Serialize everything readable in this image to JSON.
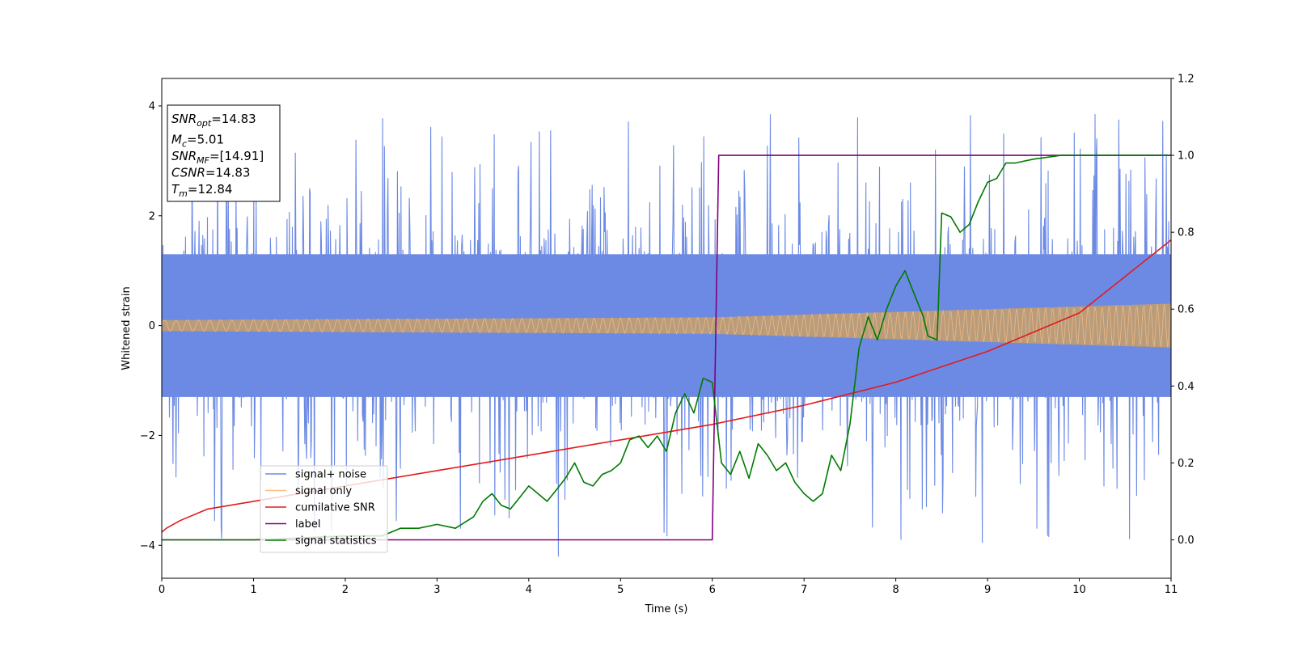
{
  "chart_data": {
    "type": "line",
    "xlabel": "Time (s)",
    "ylabel": "Whitened strain",
    "xlim": [
      0,
      11
    ],
    "ylim": [
      -4.6,
      4.5
    ],
    "y2lim": [
      -0.1,
      1.2
    ],
    "x_ticks": [
      "0",
      "1",
      "2",
      "3",
      "4",
      "5",
      "6",
      "7",
      "8",
      "9",
      "10",
      "11"
    ],
    "y_ticks": [
      "−4",
      "−2",
      "0",
      "2",
      "4"
    ],
    "y2_ticks": [
      "0.0",
      "0.2",
      "0.4",
      "0.6",
      "0.8",
      "1.0",
      "1.2"
    ],
    "legend_position": "lower-left",
    "series": [
      {
        "name": "signal+ noise",
        "axis": "left",
        "color": "#6c8ae4",
        "description": "dense oscillating noisy strain, amplitude ~1.2, spikes to about ±4",
        "envelope": [
          [
            0,
            -1.3,
            1.3
          ],
          [
            11,
            -1.3,
            1.3
          ]
        ]
      },
      {
        "name": "signal only",
        "axis": "left",
        "color": "#ffbf7f",
        "description": "chirp with slowly growing amplitude",
        "envelope": [
          [
            0,
            -0.1,
            0.1
          ],
          [
            6,
            -0.15,
            0.15
          ],
          [
            11,
            -0.4,
            0.4
          ]
        ]
      },
      {
        "name": "cumilative SNR",
        "axis": "right",
        "color": "#e41a1c",
        "x": [
          0,
          0.05,
          0.2,
          0.5,
          1,
          2,
          3,
          4,
          5,
          6,
          7,
          8,
          9,
          10,
          11
        ],
        "y": [
          0.02,
          0.03,
          0.05,
          0.08,
          0.1,
          0.14,
          0.18,
          0.22,
          0.26,
          0.3,
          0.35,
          0.41,
          0.49,
          0.59,
          0.78
        ]
      },
      {
        "name": "label",
        "axis": "right",
        "color": "#800080",
        "x": [
          0,
          6.0,
          6.07,
          11
        ],
        "y": [
          0.0,
          0.0,
          1.0,
          1.0
        ]
      },
      {
        "name": "signal statistics",
        "axis": "right",
        "color": "#007a00",
        "x": [
          0,
          1,
          2,
          2.4,
          2.6,
          2.8,
          3.0,
          3.2,
          3.4,
          3.5,
          3.6,
          3.7,
          3.8,
          3.9,
          4.0,
          4.1,
          4.2,
          4.3,
          4.4,
          4.5,
          4.6,
          4.7,
          4.8,
          4.9,
          5.0,
          5.1,
          5.2,
          5.3,
          5.4,
          5.5,
          5.6,
          5.7,
          5.8,
          5.9,
          6.0,
          6.1,
          6.2,
          6.3,
          6.4,
          6.5,
          6.6,
          6.7,
          6.8,
          6.9,
          7.0,
          7.1,
          7.2,
          7.3,
          7.4,
          7.5,
          7.6,
          7.7,
          7.8,
          7.9,
          8.0,
          8.1,
          8.2,
          8.3,
          8.35,
          8.45,
          8.5,
          8.6,
          8.7,
          8.8,
          8.9,
          9.0,
          9.1,
          9.2,
          9.3,
          9.5,
          9.8,
          10.2,
          11
        ],
        "y": [
          0.0,
          0.0,
          0.01,
          0.01,
          0.03,
          0.03,
          0.04,
          0.03,
          0.06,
          0.1,
          0.12,
          0.09,
          0.08,
          0.11,
          0.14,
          0.12,
          0.1,
          0.13,
          0.16,
          0.2,
          0.15,
          0.14,
          0.17,
          0.18,
          0.2,
          0.26,
          0.27,
          0.24,
          0.27,
          0.23,
          0.33,
          0.38,
          0.33,
          0.42,
          0.41,
          0.2,
          0.17,
          0.23,
          0.16,
          0.25,
          0.22,
          0.18,
          0.2,
          0.15,
          0.12,
          0.1,
          0.12,
          0.22,
          0.18,
          0.3,
          0.5,
          0.58,
          0.52,
          0.6,
          0.66,
          0.7,
          0.64,
          0.58,
          0.53,
          0.52,
          0.85,
          0.84,
          0.8,
          0.82,
          0.88,
          0.93,
          0.94,
          0.98,
          0.98,
          0.99,
          1.0,
          1.0,
          1.0
        ]
      }
    ],
    "annotations": [
      {
        "var": "SNR",
        "sub": "opt",
        "value": "=14.83"
      },
      {
        "var": "M",
        "sub": "c",
        "value": "=5.01"
      },
      {
        "var": "SNR",
        "sub": "MF",
        "value": "=[14.91]"
      },
      {
        "var": "CSNR",
        "sub": "",
        "value": "=14.83"
      },
      {
        "var": "T",
        "sub": "m",
        "value": "=12.84"
      }
    ]
  }
}
